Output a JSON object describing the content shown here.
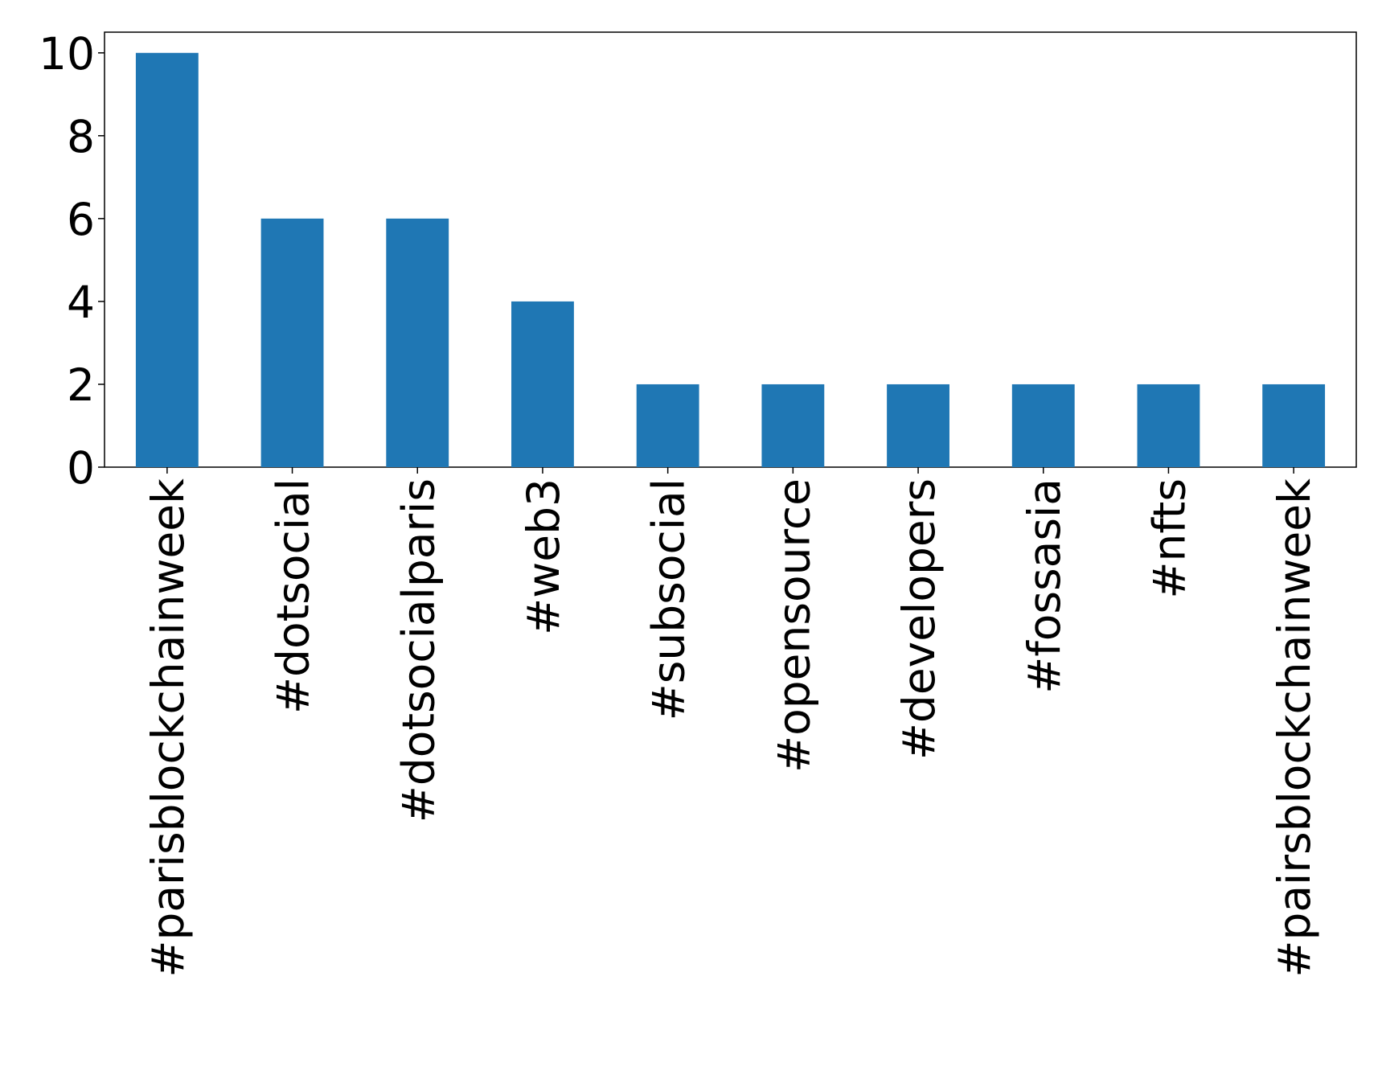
{
  "chart_data": {
    "type": "bar",
    "categories": [
      "#parisblockchainweek",
      "#dotsocial",
      "#dotsocialparis",
      "#web3",
      "#subsocial",
      "#opensource",
      "#developers",
      "#fossasia",
      "#nfts",
      "#pairsblockchainweek"
    ],
    "values": [
      10,
      6,
      6,
      4,
      2,
      2,
      2,
      2,
      2,
      2
    ],
    "color": "#1f77b4",
    "ylim": [
      0,
      10.5
    ],
    "yticks": [
      0,
      2,
      4,
      6,
      8,
      10
    ],
    "grid": false
  }
}
